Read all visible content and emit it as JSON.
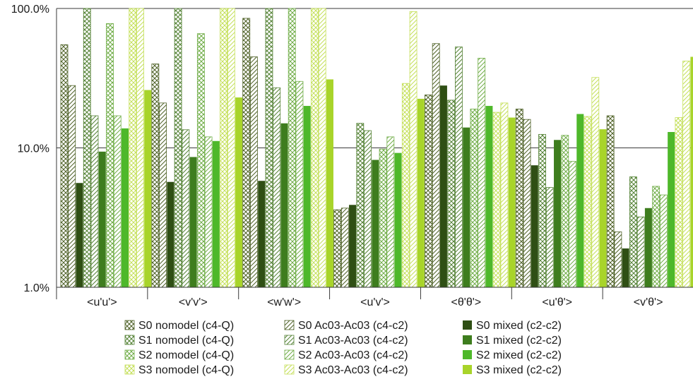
{
  "chart_data": {
    "type": "bar",
    "yscale": "log",
    "ylim": [
      1,
      100
    ],
    "yticks": [
      "1.0%",
      "10.0%",
      "100.0%"
    ],
    "ytick_values": [
      1,
      10,
      100
    ],
    "grid": true,
    "legend_position": "bottom",
    "categories": [
      "<u'u'>",
      "<v'v'>",
      "<w'w'>",
      "<u'v'>",
      "<θ'θ'>",
      "<u'θ'>",
      "<v'θ'>"
    ],
    "series": [
      {
        "name": "S0 nomodel (c4-Q)",
        "color": "#4f6228",
        "pattern": "cross",
        "values": [
          55,
          40,
          85,
          3.6,
          24,
          19,
          17
        ]
      },
      {
        "name": "S0 Ac03-Ac03 (c4-c2)",
        "color": "#4f6228",
        "pattern": "diag",
        "values": [
          28,
          21,
          45,
          3.7,
          56,
          16,
          2.5
        ]
      },
      {
        "name": "S0 mixed (c2-c2)",
        "color": "#2f4f14",
        "pattern": "solid",
        "values": [
          5.6,
          5.7,
          5.8,
          3.9,
          28,
          7.5,
          1.9
        ]
      },
      {
        "name": "S1 nomodel (c4-Q)",
        "color": "#548235",
        "pattern": "cross",
        "values": [
          100,
          100,
          100,
          15,
          22,
          12.5,
          6.2
        ]
      },
      {
        "name": "S1 Ac03-Ac03 (c4-c2)",
        "color": "#548235",
        "pattern": "diag",
        "values": [
          17,
          13.5,
          27,
          13.3,
          53,
          5.2,
          3.2
        ]
      },
      {
        "name": "S1 mixed (c2-c2)",
        "color": "#3e7d1e",
        "pattern": "solid",
        "values": [
          9.4,
          8.6,
          15,
          8.2,
          14,
          11.4,
          3.7
        ]
      },
      {
        "name": "S2 nomodel (c4-Q)",
        "color": "#70ad47",
        "pattern": "cross",
        "values": [
          78,
          66,
          100,
          9.8,
          19,
          12.3,
          5.3
        ]
      },
      {
        "name": "S2 Ac03-Ac03 (c4-c2)",
        "color": "#70ad47",
        "pattern": "diag",
        "values": [
          17,
          12,
          30,
          12,
          44,
          8,
          4.6
        ]
      },
      {
        "name": "S2 mixed (c2-c2)",
        "color": "#4eb82a",
        "pattern": "solid",
        "values": [
          13.8,
          11.2,
          20,
          9.2,
          20,
          17.5,
          13
        ]
      },
      {
        "name": "S3 nomodel (c4-Q)",
        "color": "#c5e05a",
        "pattern": "cross",
        "values": [
          100,
          100,
          100,
          29,
          18,
          16.8,
          16.5
        ]
      },
      {
        "name": "S3 Ac03-Ac03 (c4-c2)",
        "color": "#c5e05a",
        "pattern": "diag",
        "values": [
          100,
          100,
          100,
          95,
          21,
          32,
          42
        ]
      },
      {
        "name": "S3 mixed (c2-c2)",
        "color": "#a8d42a",
        "pattern": "solid",
        "values": [
          26,
          23,
          31,
          22.5,
          16.5,
          13.6,
          45
        ]
      }
    ]
  }
}
